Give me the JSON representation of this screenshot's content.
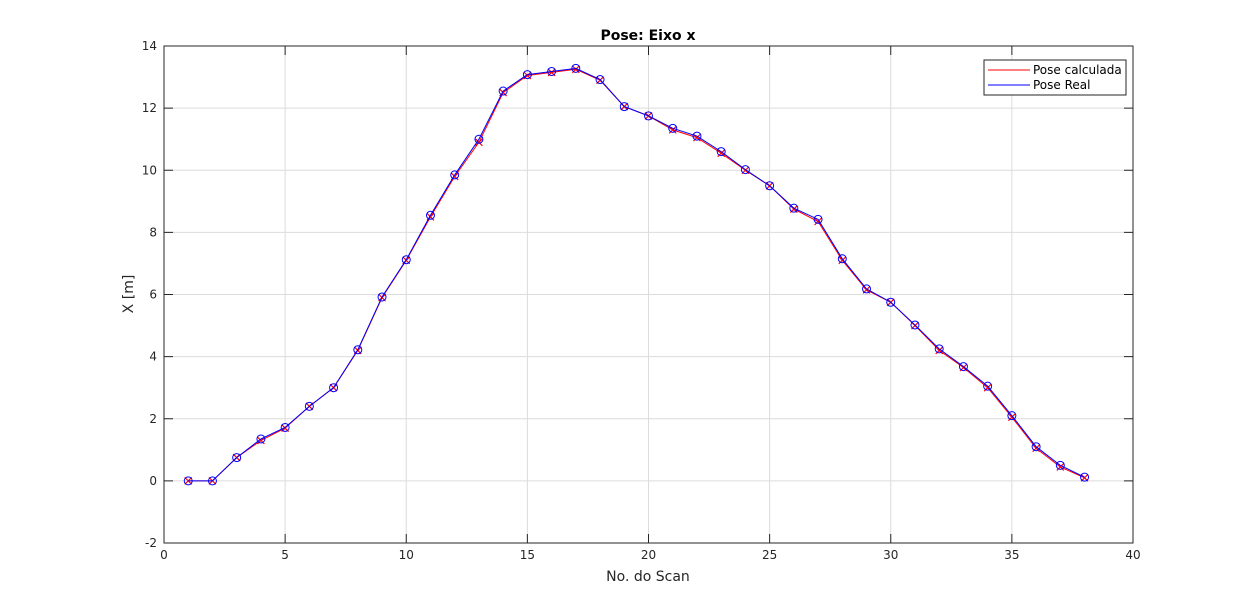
{
  "chart_data": {
    "type": "line",
    "title": "Pose: Eixo x",
    "xlabel": "No. do Scan",
    "ylabel": "X [m]",
    "xlim": [
      0,
      40
    ],
    "ylim": [
      -2,
      14
    ],
    "xticks": [
      0,
      5,
      10,
      15,
      20,
      25,
      30,
      35,
      40
    ],
    "yticks": [
      -2,
      0,
      2,
      4,
      6,
      8,
      10,
      12,
      14
    ],
    "grid": true,
    "legend_position": "top-right",
    "x": [
      1,
      2,
      3,
      4,
      5,
      6,
      7,
      8,
      9,
      10,
      11,
      12,
      13,
      14,
      15,
      16,
      17,
      18,
      19,
      20,
      21,
      22,
      23,
      24,
      25,
      26,
      27,
      28,
      29,
      30,
      31,
      32,
      33,
      34,
      35,
      36,
      37,
      38
    ],
    "series": [
      {
        "name": "Pose calculada",
        "color": "#ff0000",
        "marker": "x",
        "values": [
          0,
          0,
          0.75,
          1.3,
          1.7,
          2.4,
          3.0,
          4.2,
          5.9,
          7.1,
          8.5,
          9.8,
          10.9,
          12.5,
          13.05,
          13.15,
          13.25,
          12.9,
          12.05,
          11.75,
          11.3,
          11.05,
          10.55,
          10.0,
          9.5,
          8.75,
          8.35,
          7.1,
          6.15,
          5.75,
          5.0,
          4.2,
          3.65,
          3.0,
          2.05,
          1.05,
          0.45,
          0.1
        ]
      },
      {
        "name": "Pose Real",
        "color": "#0000ff",
        "marker": "o",
        "values": [
          0,
          0,
          0.75,
          1.35,
          1.72,
          2.4,
          3.0,
          4.22,
          5.92,
          7.12,
          8.55,
          9.85,
          11.0,
          12.55,
          13.08,
          13.18,
          13.28,
          12.92,
          12.05,
          11.75,
          11.35,
          11.1,
          10.6,
          10.02,
          9.5,
          8.78,
          8.42,
          7.15,
          6.18,
          5.75,
          5.02,
          4.25,
          3.68,
          3.05,
          2.1,
          1.1,
          0.5,
          0.12
        ]
      }
    ]
  }
}
